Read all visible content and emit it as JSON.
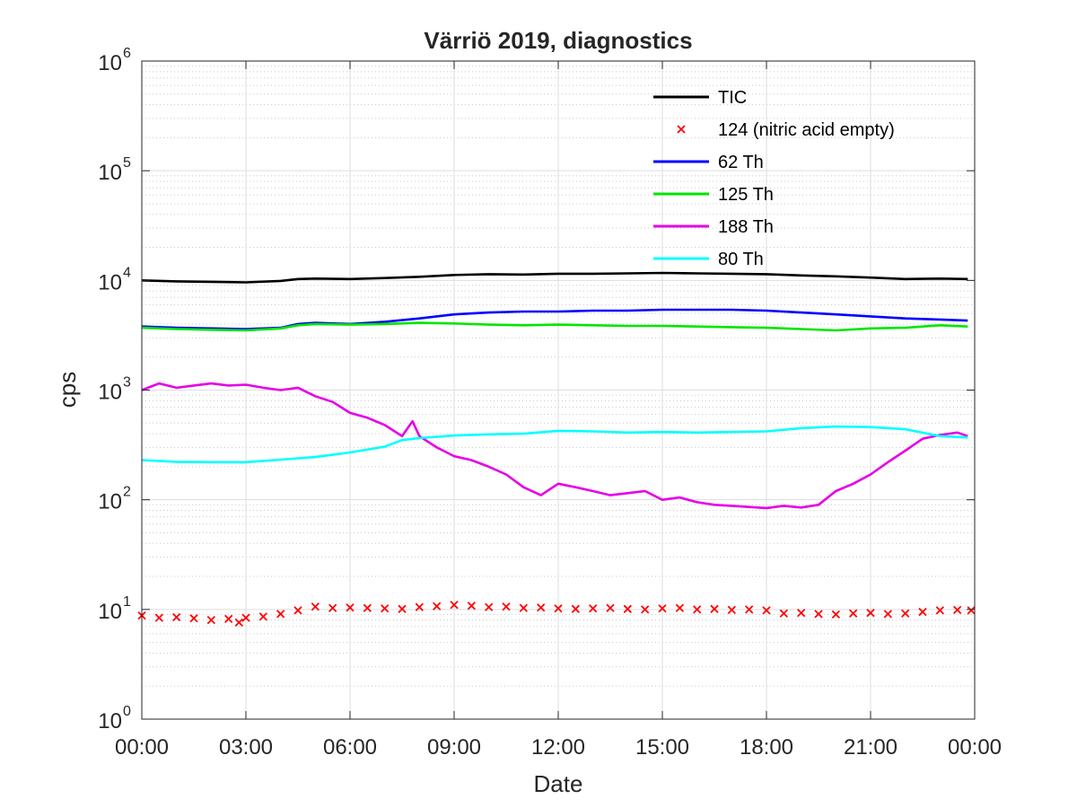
{
  "chart_data": {
    "type": "line",
    "title": "Värriö 2019, diagnostics",
    "xlabel": "Date",
    "ylabel": "cps",
    "y_scale": "log",
    "ylim": [
      1,
      1000000
    ],
    "xlim": [
      "00:00",
      "24:00"
    ],
    "x_ticks": [
      "00:00",
      "03:00",
      "06:00",
      "09:00",
      "12:00",
      "15:00",
      "18:00",
      "21:00",
      "00:00"
    ],
    "y_ticks": [
      {
        "value": 1,
        "base": "10",
        "exp": "0"
      },
      {
        "value": 10,
        "base": "10",
        "exp": "1"
      },
      {
        "value": 100,
        "base": "10",
        "exp": "2"
      },
      {
        "value": 1000,
        "base": "10",
        "exp": "3"
      },
      {
        "value": 10000,
        "base": "10",
        "exp": "4"
      },
      {
        "value": 100000,
        "base": "10",
        "exp": "5"
      },
      {
        "value": 1000000,
        "base": "10",
        "exp": "6"
      }
    ],
    "grid": true,
    "minor_grid": true,
    "legend_position": "top-right",
    "series": [
      {
        "name": "TIC",
        "color": "#000000",
        "style": "line",
        "x": [
          0,
          1,
          2,
          3,
          4,
          4.5,
          5,
          6,
          7,
          8,
          9,
          10,
          11,
          12,
          13,
          14,
          15,
          16,
          17,
          18,
          19,
          20,
          21,
          22,
          23,
          23.8
        ],
        "y": [
          10000,
          9800,
          9700,
          9600,
          9900,
          10300,
          10400,
          10300,
          10500,
          10800,
          11200,
          11400,
          11300,
          11500,
          11500,
          11600,
          11700,
          11600,
          11500,
          11400,
          11100,
          10900,
          10600,
          10300,
          10400,
          10300
        ]
      },
      {
        "name": "124 (nitric acid empty)",
        "color": "#ff0000",
        "style": "marker",
        "x": [
          0,
          0.5,
          1,
          1.5,
          2,
          2.5,
          2.8,
          3,
          3.5,
          4,
          4.5,
          5,
          5.5,
          6,
          6.5,
          7,
          7.5,
          8,
          8.5,
          9,
          9.5,
          10,
          10.5,
          11,
          11.5,
          12,
          12.5,
          13,
          13.5,
          14,
          14.5,
          15,
          15.5,
          16,
          16.5,
          17,
          17.5,
          18,
          18.5,
          19,
          19.5,
          20,
          20.5,
          21,
          21.5,
          22,
          22.5,
          23,
          23.5,
          23.9
        ],
        "y": [
          8.8,
          8.4,
          8.5,
          8.3,
          8,
          8.2,
          7.6,
          8.4,
          8.6,
          9.1,
          9.8,
          10.6,
          10.3,
          10.4,
          10.3,
          10.2,
          10.1,
          10.5,
          10.7,
          11,
          10.8,
          10.5,
          10.6,
          10.3,
          10.4,
          10.2,
          10.1,
          10.2,
          10.3,
          10.1,
          10,
          10.2,
          10.3,
          10,
          10.1,
          9.9,
          10,
          9.8,
          9.2,
          9.3,
          9.1,
          9,
          9.2,
          9.3,
          9.1,
          9.2,
          9.5,
          9.8,
          9.9,
          9.8
        ]
      },
      {
        "name": "62 Th",
        "color": "#0000ff",
        "style": "line",
        "x": [
          0,
          1,
          2,
          3,
          4,
          4.5,
          5,
          6,
          7,
          8,
          9,
          10,
          11,
          12,
          13,
          14,
          15,
          16,
          17,
          18,
          19,
          20,
          21,
          22,
          23,
          23.8
        ],
        "y": [
          3800,
          3700,
          3650,
          3600,
          3700,
          4000,
          4100,
          4000,
          4200,
          4500,
          4900,
          5100,
          5200,
          5200,
          5300,
          5300,
          5400,
          5400,
          5400,
          5300,
          5100,
          4900,
          4700,
          4500,
          4400,
          4300
        ]
      },
      {
        "name": "125 Th",
        "color": "#00e600",
        "style": "line",
        "x": [
          0,
          1,
          2,
          3,
          4,
          4.5,
          5,
          6,
          7,
          8,
          9,
          10,
          11,
          12,
          13,
          14,
          15,
          16,
          17,
          18,
          19,
          20,
          21,
          22,
          23,
          23.8
        ],
        "y": [
          3700,
          3600,
          3550,
          3500,
          3650,
          3900,
          4000,
          3950,
          4000,
          4100,
          4050,
          3950,
          3900,
          3950,
          3900,
          3850,
          3850,
          3800,
          3750,
          3700,
          3600,
          3500,
          3650,
          3700,
          3900,
          3800
        ]
      },
      {
        "name": "188 Th",
        "color": "#e600e6",
        "style": "line",
        "x": [
          0,
          0.5,
          1,
          1.5,
          2,
          2.5,
          3,
          3.5,
          4,
          4.5,
          5,
          5.5,
          6,
          6.5,
          7,
          7.5,
          7.8,
          8,
          8.5,
          9,
          9.5,
          10,
          10.5,
          11,
          11.5,
          12,
          12.5,
          13,
          13.5,
          14,
          14.5,
          15,
          15.5,
          16,
          16.5,
          17,
          17.5,
          18,
          18.5,
          19,
          19.5,
          20,
          20.5,
          21,
          21.5,
          22,
          22.5,
          23,
          23.5,
          23.8
        ],
        "y": [
          1000,
          1150,
          1050,
          1100,
          1150,
          1100,
          1120,
          1050,
          1000,
          1050,
          880,
          780,
          620,
          560,
          480,
          380,
          520,
          380,
          300,
          250,
          230,
          200,
          170,
          130,
          110,
          140,
          130,
          120,
          110,
          115,
          120,
          100,
          105,
          95,
          90,
          88,
          86,
          84,
          88,
          85,
          90,
          120,
          140,
          170,
          220,
          280,
          360,
          390,
          410,
          380
        ]
      },
      {
        "name": "80 Th",
        "color": "#00ffff",
        "style": "line",
        "x": [
          0,
          1,
          2,
          3,
          4,
          5,
          6,
          7,
          7.5,
          8,
          9,
          10,
          11,
          12,
          13,
          14,
          15,
          16,
          17,
          18,
          19,
          20,
          21,
          22,
          23,
          23.8
        ],
        "y": [
          230,
          222,
          220,
          220,
          232,
          245,
          270,
          305,
          350,
          365,
          385,
          395,
          400,
          425,
          420,
          410,
          415,
          410,
          415,
          420,
          450,
          465,
          460,
          440,
          380,
          370
        ]
      }
    ]
  }
}
